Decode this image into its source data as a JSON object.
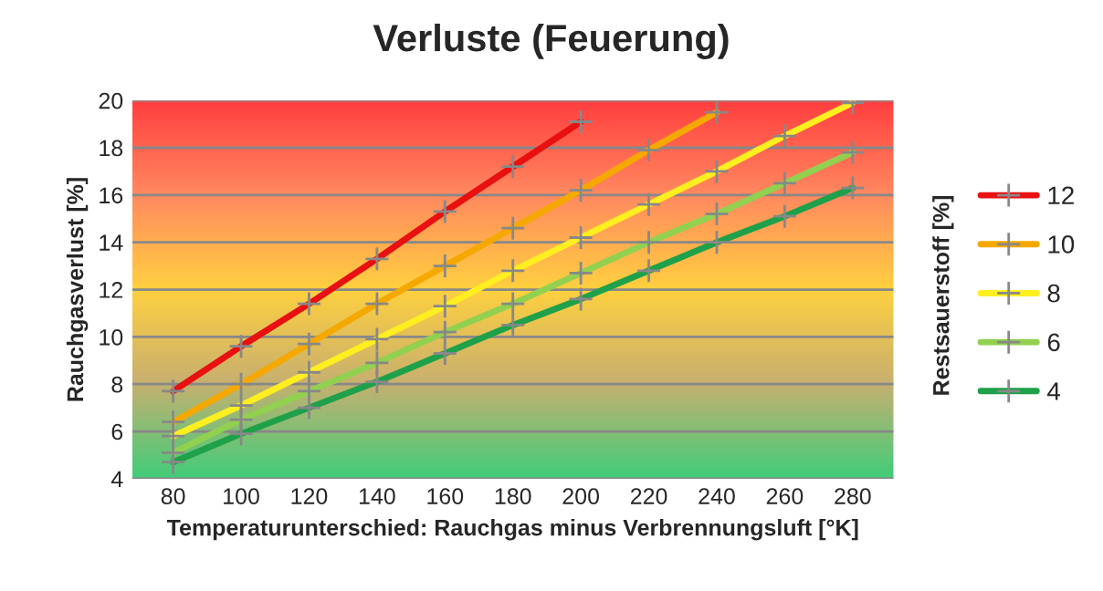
{
  "chart_data": {
    "type": "line",
    "title": "Verluste (Feuerung)",
    "xlabel": "Temperaturunterschied: Rauchgas minus Verbrennungsluft [°K]",
    "ylabel": "Rauchgasverlust [%]",
    "legend_title": "Restsauerstoff [%]",
    "categories": [
      "80",
      "100",
      "120",
      "140",
      "160",
      "180",
      "200",
      "220",
      "240",
      "260",
      "280"
    ],
    "series": [
      {
        "name": "12",
        "color": "#e81010",
        "values": [
          7.7,
          9.6,
          11.4,
          13.3,
          15.3,
          17.2,
          19.1,
          null,
          null,
          null,
          null
        ]
      },
      {
        "name": "10",
        "color": "#f5a800",
        "values": [
          6.4,
          8.0,
          9.7,
          11.4,
          13.0,
          14.6,
          16.2,
          17.9,
          19.5,
          null,
          null
        ]
      },
      {
        "name": "8",
        "color": "#ffee20",
        "values": [
          5.8,
          7.1,
          8.5,
          9.9,
          11.3,
          12.8,
          14.2,
          15.6,
          17.0,
          18.5,
          19.9
        ]
      },
      {
        "name": "6",
        "color": "#92d050",
        "values": [
          5.1,
          6.5,
          7.7,
          8.9,
          10.2,
          11.4,
          12.7,
          14.0,
          15.2,
          16.5,
          17.8
        ]
      },
      {
        "name": "4",
        "color": "#1fa04a",
        "values": [
          4.7,
          5.9,
          7.0,
          8.1,
          9.3,
          10.5,
          11.6,
          12.8,
          14.0,
          15.1,
          16.3
        ]
      }
    ],
    "ylim": [
      4,
      20
    ],
    "yticks": [
      4,
      6,
      8,
      10,
      12,
      14,
      16,
      18,
      20
    ],
    "grid": "y",
    "legend": "right",
    "marker": "cross",
    "line_style": "solid"
  }
}
